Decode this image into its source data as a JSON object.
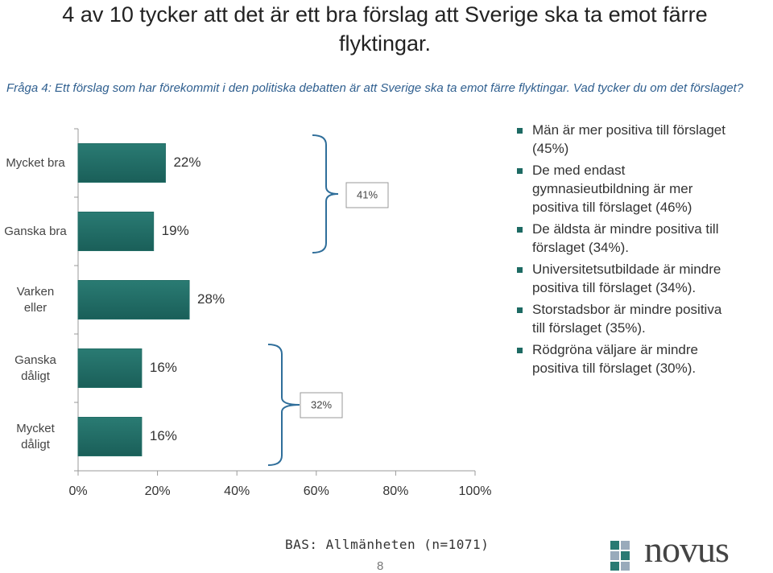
{
  "chart_data": {
    "type": "bar",
    "orientation": "horizontal",
    "title": [
      "4 av 10 tycker att det är ett bra förslag att Sverige ska ta emot färre",
      "flyktingar."
    ],
    "subtitle": "Fråga 4: Ett förslag som har förekommit i den politiska debatten är att Sverige ska ta emot färre flyktingar. Vad tycker du om det förslaget?",
    "categories": [
      "Mycket bra",
      "Ganska bra",
      "Varken\neller",
      "Ganska\ndåligt",
      "Mycket\ndåligt"
    ],
    "values": [
      22,
      19,
      28,
      16,
      16
    ],
    "value_labels": [
      "22%",
      "19%",
      "28%",
      "16%",
      "16%"
    ],
    "color": "#226d66",
    "xlim": [
      0,
      100
    ],
    "xticks": [
      {
        "value": 0,
        "label": "0%"
      },
      {
        "value": 20,
        "label": "20%"
      },
      {
        "value": 40,
        "label": "40%"
      },
      {
        "value": 60,
        "label": "60%"
      },
      {
        "value": 80,
        "label": "80%"
      },
      {
        "value": 100,
        "label": "100%"
      }
    ],
    "brackets": [
      {
        "label": "41%"
      },
      {
        "label": "32%"
      }
    ],
    "bullets": [
      "Män är mer positiva till förslaget (45%)",
      "De med endast gymnasieutbildning är mer positiva till förslaget (46%)",
      "De äldsta är mindre positiva till förslaget (34%).",
      "Universitetsutbildade är mindre positiva till förslaget (34%).",
      "Storstadsbor  är mindre positiva till förslaget (35%).",
      "Rödgröna väljare är mindre positiva till förslaget (30%)."
    ],
    "base": "BAS: Allmänheten (n=1071)",
    "page_number": "8",
    "logo": "novus"
  }
}
